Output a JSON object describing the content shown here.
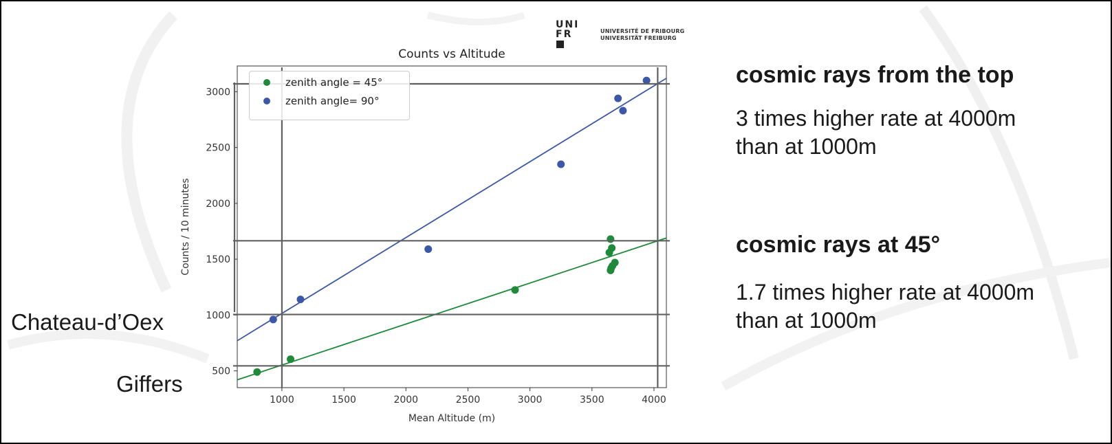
{
  "logo": {
    "mark_lines": [
      "UNI",
      "FR"
    ],
    "text_lines": [
      "UNIVERSITÉ DE FRIBOURG",
      "UNIVERSITÄT FREIBURG"
    ]
  },
  "side_labels": {
    "upper": "Chateau-d’Oex",
    "lower": "Giffers"
  },
  "right_panel": {
    "top_heading": "cosmic rays from the top",
    "top_text_lines": [
      "3 times higher rate at 4000m",
      "than at 1000m"
    ],
    "bottom_heading": "cosmic rays at 45°",
    "bottom_text_lines": [
      "1.7 times higher rate at 4000m",
      "than at 1000m"
    ]
  },
  "chart_data": {
    "type": "scatter",
    "title": "Counts vs Altitude",
    "xlabel": "Mean Altitude (m)",
    "ylabel": "Counts / 10 minutes",
    "xlim": [
      640,
      4100
    ],
    "ylim": [
      350,
      3230
    ],
    "xticks": [
      1000,
      1500,
      2000,
      2500,
      3000,
      3500,
      4000
    ],
    "yticks": [
      500,
      1000,
      1500,
      2000,
      2500,
      3000
    ],
    "legend_position": "upper-left",
    "series": [
      {
        "name": "zenith angle = 45°",
        "color": "#1e8a3a",
        "x": [
          800,
          1070,
          2880,
          3650,
          3660,
          3640,
          3665,
          3685,
          3655,
          3650
        ],
        "y": [
          490,
          605,
          1225,
          1680,
          1600,
          1560,
          1440,
          1470,
          1420,
          1400
        ],
        "fit_line": [
          [
            640,
            420
          ],
          [
            4100,
            1690
          ]
        ]
      },
      {
        "name": "zenith angle= 90°",
        "color": "#3b57a8",
        "x": [
          930,
          1150,
          2180,
          3250,
          3710,
          3750,
          3940
        ],
        "y": [
          960,
          1140,
          1590,
          2350,
          2940,
          2830,
          3100
        ],
        "fit_line": [
          [
            640,
            770
          ],
          [
            4100,
            3120
          ]
        ]
      }
    ],
    "reference_lines": {
      "horizontal": [
        3070,
        1665,
        1005,
        545
      ],
      "vertical": [
        1000,
        4030
      ]
    },
    "reference_color": "#606060"
  }
}
